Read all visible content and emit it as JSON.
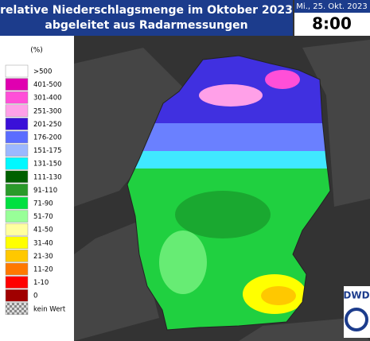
{
  "header": {
    "title_lines": [
      "relative Niederschlagsmenge im Oktober 2023",
      "abgeleitet aus Radarmessungen"
    ],
    "date": "Mi., 25. Okt. 2023",
    "time": "8:00"
  },
  "legend": {
    "unit": "(%)",
    "items": [
      {
        "label": ">500",
        "color": "#ffffff"
      },
      {
        "label": "401-500",
        "color": "#e000b0"
      },
      {
        "label": "301-400",
        "color": "#ff4fd8"
      },
      {
        "label": "251-300",
        "color": "#ffa0e8"
      },
      {
        "label": "201-250",
        "color": "#3a10d8"
      },
      {
        "label": "176-200",
        "color": "#5a6cff"
      },
      {
        "label": "151-175",
        "color": "#9cb8ff"
      },
      {
        "label": "131-150",
        "color": "#00f8ff"
      },
      {
        "label": "111-130",
        "color": "#006000"
      },
      {
        "label": "91-110",
        "color": "#2a9a2a"
      },
      {
        "label": "71-90",
        "color": "#00e040"
      },
      {
        "label": "51-70",
        "color": "#98ff98"
      },
      {
        "label": "41-50",
        "color": "#ffffa0"
      },
      {
        "label": "31-40",
        "color": "#ffff00"
      },
      {
        "label": "21-30",
        "color": "#ffc800"
      },
      {
        "label": "11-20",
        "color": "#ff7800"
      },
      {
        "label": "1-10",
        "color": "#ff0000"
      },
      {
        "label": "0",
        "color": "#a00000"
      },
      {
        "label": "kein Wert",
        "color": "url(#checker)"
      }
    ]
  },
  "logo": {
    "text": "DWD"
  }
}
